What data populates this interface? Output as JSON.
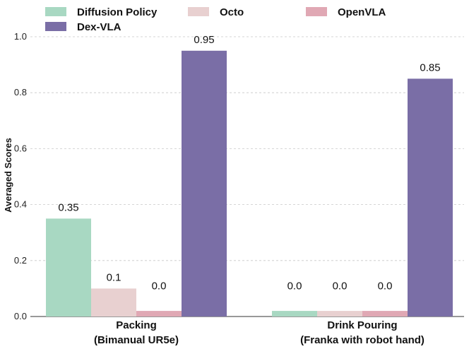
{
  "chart_data": {
    "type": "bar",
    "categories": [
      "Packing\n(Bimanual UR5e)",
      "Drink Pouring\n(Franka with robot hand)"
    ],
    "series": [
      {
        "name": "Diffusion Policy",
        "values": [
          0.35,
          0.0
        ],
        "labels": [
          "0.35",
          "0.0"
        ],
        "color": "#a8d8c2"
      },
      {
        "name": "Octo",
        "values": [
          0.1,
          0.0
        ],
        "labels": [
          "0.1",
          "0.0"
        ],
        "color": "#e8d0d0"
      },
      {
        "name": "OpenVLA",
        "values": [
          0.0,
          0.0
        ],
        "labels": [
          "0.0",
          "0.0"
        ],
        "color": "#e0a8b4"
      },
      {
        "name": "Dex-VLA",
        "values": [
          0.95,
          0.85
        ],
        "labels": [
          "0.95",
          "0.85"
        ],
        "color": "#7a6ea6"
      }
    ],
    "ylabel": "Averaged Scores",
    "xlabel": "",
    "ylim": [
      0,
      1.0
    ],
    "yticks": [
      "0.0",
      "0.2",
      "0.4",
      "0.6",
      "0.8",
      "1.0"
    ],
    "grid": "horizontal dashed",
    "legend_position": "top",
    "zero_bar_stub": 0.02
  }
}
